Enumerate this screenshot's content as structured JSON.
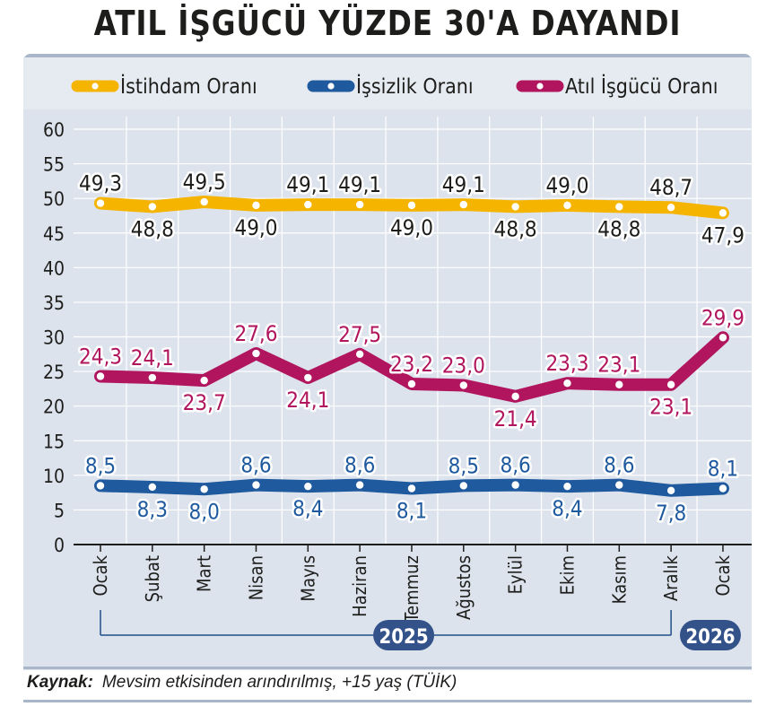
{
  "title": "ATIL İŞGÜCÜ YÜZDE 30'A DAYANDI",
  "source": {
    "label": "Kaynak:",
    "text": "Mevsim etkisinden arındırılmış, +15 yaş (TÜİK)"
  },
  "colors": {
    "employment": "#f5b400",
    "unemployment": "#1f5a9e",
    "idle": "#b0155e",
    "panel": "#dde3ed",
    "grid": "#ffffff",
    "text": "#1d1d1b"
  },
  "chart_data": {
    "type": "line",
    "title": "ATIL İŞGÜCÜ YÜZDE 30'A DAYANDI",
    "xlabel": "",
    "ylabel": "",
    "ylim": [
      0,
      60
    ],
    "yticks": [
      0,
      5,
      10,
      15,
      20,
      25,
      30,
      35,
      40,
      45,
      50,
      55,
      60
    ],
    "grid": true,
    "legend_position": "top",
    "categories": [
      "Ocak",
      "Şubat",
      "Mart",
      "Nisan",
      "Mayıs",
      "Haziran",
      "Temmuz",
      "Ağustos",
      "Eylül",
      "Ekim",
      "Kasım",
      "Aralık",
      "Ocak"
    ],
    "year_groups": [
      {
        "label": "2025",
        "from": 0,
        "to": 11
      },
      {
        "label": "2026",
        "from": 12,
        "to": 12
      }
    ],
    "series": [
      {
        "name": "İstihdam Oranı",
        "color_key": "employment",
        "values": [
          49.3,
          48.8,
          49.5,
          49.0,
          49.1,
          49.1,
          49.0,
          49.1,
          48.8,
          49.0,
          48.8,
          48.7,
          47.9
        ],
        "labels": [
          "49,3",
          "48,8",
          "49,5",
          "49,0",
          "49,1",
          "49,1",
          "49,0",
          "49,1",
          "48,8",
          "49,0",
          "48,8",
          "48,7",
          "47,9"
        ]
      },
      {
        "name": "İşsizlik Oranı",
        "color_key": "unemployment",
        "values": [
          8.5,
          8.3,
          8.0,
          8.6,
          8.4,
          8.6,
          8.1,
          8.5,
          8.6,
          8.4,
          8.6,
          7.8,
          8.1
        ],
        "labels": [
          "8,5",
          "8,3",
          "8,0",
          "8,6",
          "8,4",
          "8,6",
          "8,1",
          "8,5",
          "8,6",
          "8,4",
          "8,6",
          "7,8",
          "8,1"
        ]
      },
      {
        "name": "Atıl İşgücü Oranı",
        "color_key": "idle",
        "values": [
          24.3,
          24.1,
          23.7,
          27.6,
          24.1,
          27.5,
          23.2,
          23.0,
          21.4,
          23.3,
          23.1,
          23.1,
          29.9
        ],
        "labels": [
          "24,3",
          "24,1",
          "23,7",
          "27,6",
          "24,1",
          "27,5",
          "23,2",
          "23,0",
          "21,4",
          "23,3",
          "23,1",
          "23,1",
          "29,9"
        ]
      }
    ]
  }
}
